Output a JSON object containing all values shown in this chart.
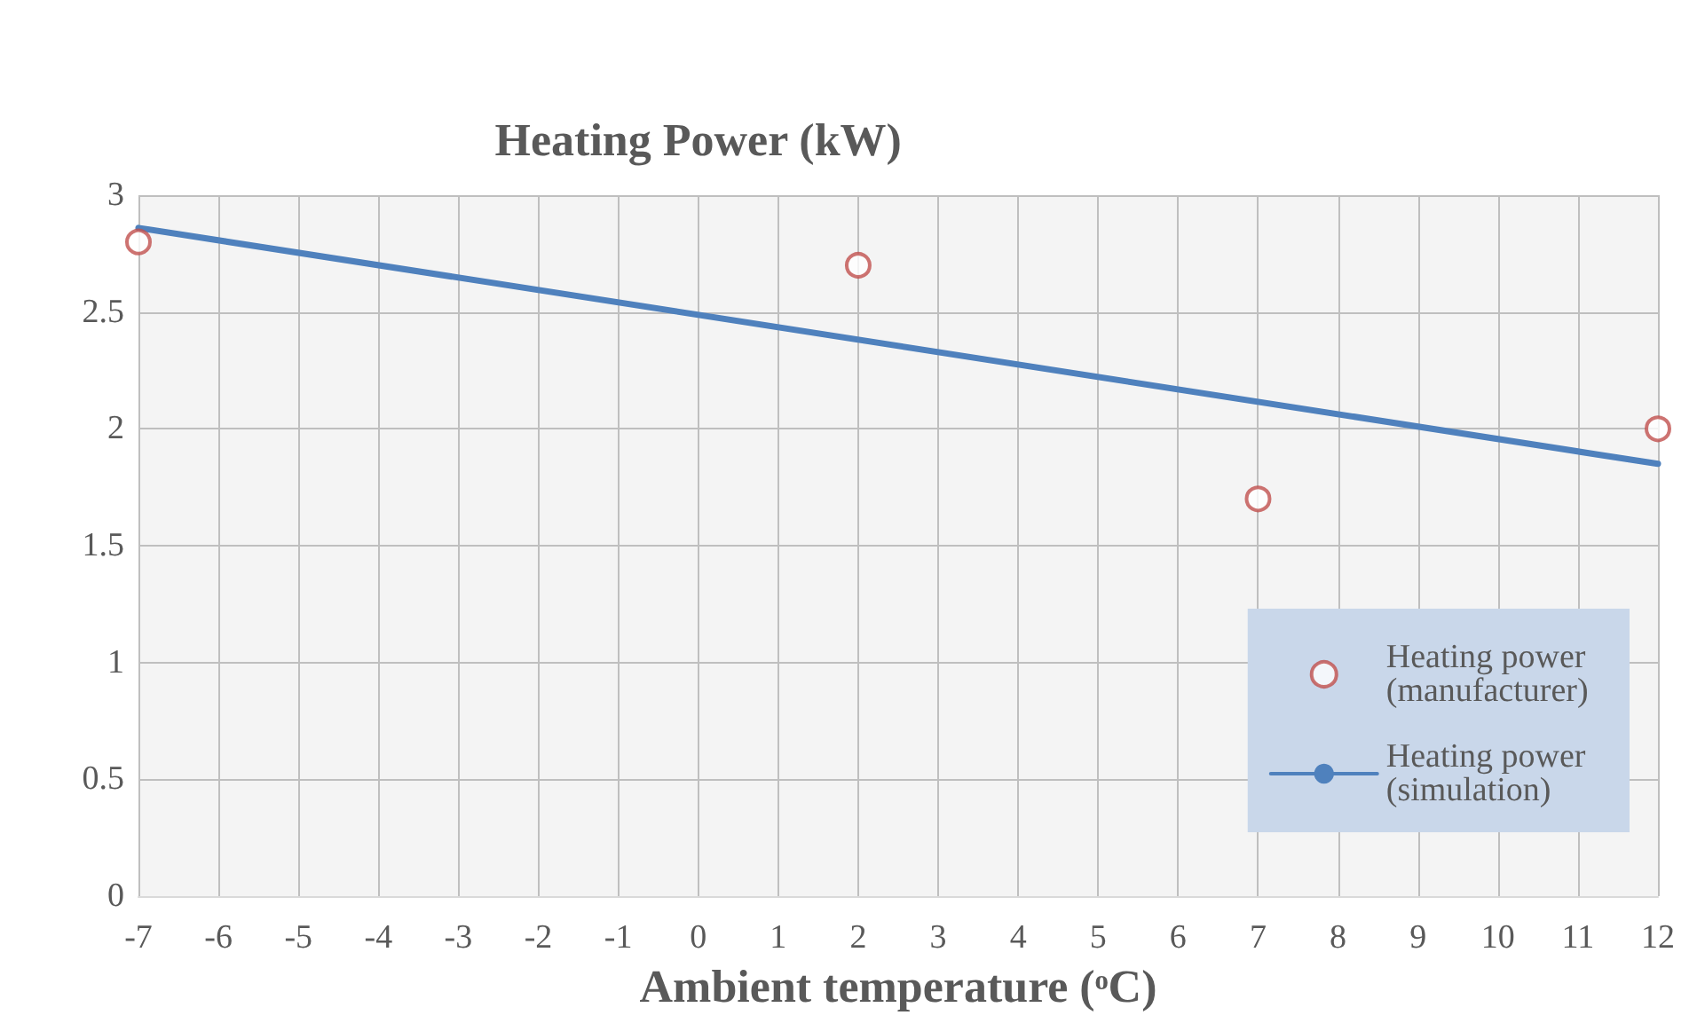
{
  "chart_data": {
    "type": "scatter",
    "ylabel": "Heating Power (kW)",
    "xlabel": "Ambient temperature (ᵒC)",
    "xlim": [
      -7,
      12
    ],
    "xticks": [
      -7,
      -6,
      -5,
      -4,
      -3,
      -2,
      -1,
      0,
      1,
      2,
      3,
      4,
      5,
      6,
      7,
      8,
      9,
      10,
      11,
      12
    ],
    "ylim": [
      0,
      3
    ],
    "yticks": [
      0,
      0.5,
      1,
      1.5,
      2,
      2.5,
      3
    ],
    "grid": true,
    "legend": "bottom right",
    "series": [
      {
        "name": "Heating power (manufacturer)",
        "marker": "circle",
        "color": "#c0504d",
        "x": [
          -7,
          2,
          7,
          12
        ],
        "values": [
          2.8,
          2.7,
          1.7,
          2.0
        ]
      },
      {
        "name": "Heating power (simulation)",
        "type": "line",
        "marker": "none",
        "line_style": "solid",
        "color": "#4f81bd",
        "x": [
          -7,
          12
        ],
        "values": [
          2.86,
          1.85
        ]
      }
    ]
  }
}
